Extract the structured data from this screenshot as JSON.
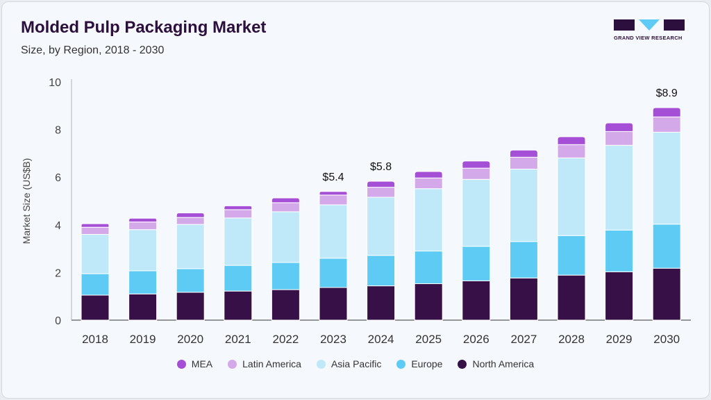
{
  "header": {
    "title": "Molded Pulp Packaging Market",
    "subtitle": "Size, by Region, 2018 - 2030"
  },
  "logo": {
    "text": "GRAND VIEW RESEARCH",
    "colors": {
      "dark": "#2c0f3c",
      "accent": "#5ecbf5"
    }
  },
  "chart_data": {
    "type": "bar",
    "stacked": true,
    "title": "Molded Pulp Packaging Market",
    "subtitle": "Size, by Region, 2018 - 2030",
    "xlabel": "",
    "ylabel": "Market Size (US$B)",
    "ylim": [
      0,
      10
    ],
    "yticks": [
      0,
      2,
      4,
      6,
      8,
      10
    ],
    "grid": false,
    "legend_position": "bottom",
    "categories": [
      "2018",
      "2019",
      "2020",
      "2021",
      "2022",
      "2023",
      "2024",
      "2025",
      "2026",
      "2027",
      "2028",
      "2029",
      "2030"
    ],
    "series": [
      {
        "name": "North America",
        "color": "#371047",
        "values": [
          1.05,
          1.1,
          1.17,
          1.22,
          1.28,
          1.37,
          1.44,
          1.53,
          1.65,
          1.77,
          1.89,
          2.03,
          2.18
        ]
      },
      {
        "name": "Europe",
        "color": "#5ecbf5",
        "values": [
          0.9,
          0.97,
          0.99,
          1.08,
          1.14,
          1.23,
          1.28,
          1.37,
          1.45,
          1.53,
          1.66,
          1.75,
          1.85
        ]
      },
      {
        "name": "Asia Pacific",
        "color": "#bfe9f9",
        "values": [
          1.65,
          1.73,
          1.86,
          1.99,
          2.13,
          2.24,
          2.44,
          2.62,
          2.81,
          3.04,
          3.26,
          3.56,
          3.86
        ]
      },
      {
        "name": "Latin America",
        "color": "#d4a9e9",
        "values": [
          0.3,
          0.32,
          0.29,
          0.35,
          0.38,
          0.41,
          0.42,
          0.45,
          0.47,
          0.5,
          0.56,
          0.58,
          0.64
        ]
      },
      {
        "name": "MEA",
        "color": "#a54fd6",
        "values": [
          0.15,
          0.16,
          0.19,
          0.16,
          0.2,
          0.15,
          0.25,
          0.27,
          0.3,
          0.3,
          0.33,
          0.36,
          0.39
        ]
      }
    ],
    "annotations": [
      {
        "category": "2023",
        "text": "$5.4"
      },
      {
        "category": "2024",
        "text": "$5.8"
      },
      {
        "category": "2030",
        "text": "$8.9"
      }
    ],
    "legend_order": [
      "MEA",
      "Latin America",
      "Asia Pacific",
      "Europe",
      "North America"
    ]
  }
}
